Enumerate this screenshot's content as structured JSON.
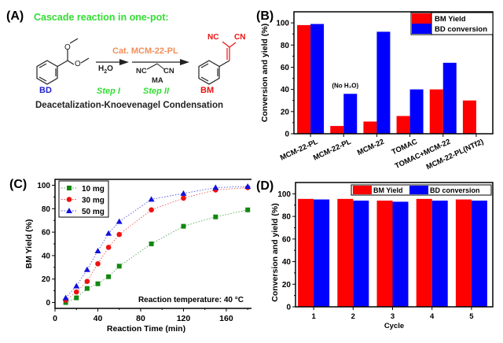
{
  "panel_a": {
    "label": "(A)",
    "title": "Cascade reaction in one-pot:",
    "reactant": "BD",
    "step1_reagent": "H2O",
    "catalyst": "Cat. MCM-22-PL",
    "reagent2": "MA",
    "reagent2_nc_left": "NC",
    "reagent2_cn_right": "CN",
    "step1": "Step I",
    "step2": "Step II",
    "product": "BM",
    "product_nc": "NC",
    "product_cn": "CN",
    "caption": "Deacetalization-Knoevenagel Condensation",
    "colors": {
      "title": "#33dd33",
      "catalyst": "#f0905a",
      "reactant": "#2222cc",
      "product": "#ee1111",
      "steps": "#33dd33"
    }
  },
  "chart_data": [
    {
      "panel": "(B)",
      "type": "bar",
      "title": "",
      "xlabel": "",
      "ylabel": "Conversion and yield (%)",
      "ylim": [
        0,
        110
      ],
      "yticks": [
        0,
        20,
        40,
        60,
        80,
        100
      ],
      "categories": [
        "MCM-22-PL",
        "MCM-22-PL",
        "MCM-22",
        "TOMAC",
        "TOMAC+MCM-22",
        "MCM-22-PL(NTf2)"
      ],
      "series": [
        {
          "name": "BM Yield",
          "color": "#ff0000",
          "values": [
            98,
            7,
            11,
            16,
            40,
            30
          ]
        },
        {
          "name": "BD conversion",
          "color": "#0000ff",
          "values": [
            99,
            36,
            92,
            40,
            64,
            0
          ]
        }
      ],
      "annotations": [
        {
          "category_index": 1,
          "text": "(No H₂O)"
        }
      ],
      "legend": "top-right"
    },
    {
      "panel": "(C)",
      "type": "scatter",
      "title": "",
      "xlabel": "Reaction Time (min)",
      "ylabel": "BM Yield (%)",
      "xlim": [
        0,
        185
      ],
      "ylim": [
        -5,
        105
      ],
      "xticks": [
        0,
        40,
        80,
        120,
        160
      ],
      "yticks": [
        0,
        20,
        40,
        60,
        80,
        100
      ],
      "x": [
        10,
        20,
        30,
        40,
        50,
        60,
        90,
        120,
        150,
        180
      ],
      "series": [
        {
          "name": "10 mg",
          "color": "#118811",
          "marker": "square",
          "values": [
            0,
            4,
            12,
            16,
            22,
            31,
            50,
            65,
            73,
            79
          ]
        },
        {
          "name": "30 mg",
          "color": "#ee1111",
          "marker": "circle",
          "values": [
            2,
            9,
            18,
            33,
            47,
            58,
            79,
            89,
            96,
            98
          ]
        },
        {
          "name": "50 mg",
          "color": "#1111dd",
          "marker": "triangle",
          "values": [
            4,
            14,
            28,
            44,
            59,
            69,
            88,
            93,
            98,
            99
          ]
        }
      ],
      "annotations": [
        {
          "text": "Reaction temperature: 40 °C"
        }
      ],
      "legend": "top-left"
    },
    {
      "panel": "(D)",
      "type": "bar",
      "title": "",
      "xlabel": "Cycle",
      "ylabel": "Conversion and yield (%)",
      "ylim": [
        0,
        110
      ],
      "yticks": [
        0,
        20,
        40,
        60,
        80,
        100
      ],
      "categories": [
        "1",
        "2",
        "3",
        "4",
        "5"
      ],
      "series": [
        {
          "name": "BM Yield",
          "color": "#ff0000",
          "values": [
            95.5,
            95.5,
            94,
            95.5,
            95
          ]
        },
        {
          "name": "BD conversion",
          "color": "#0000ff",
          "values": [
            95,
            94,
            93,
            94,
            94
          ]
        }
      ],
      "legend": "top-right"
    }
  ]
}
